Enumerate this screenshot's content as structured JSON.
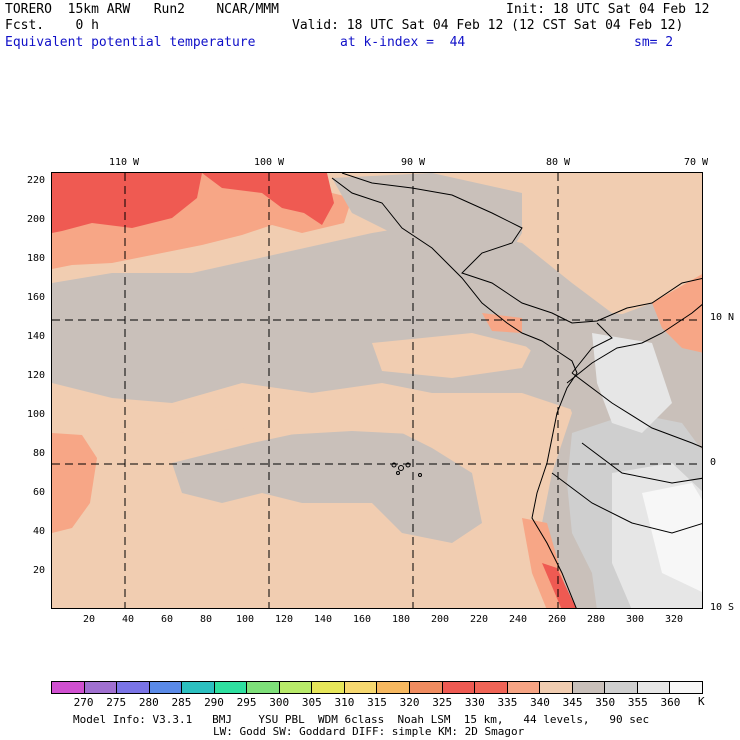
{
  "header": {
    "model": "TORERO  15km ARW   Run2    NCAR/MMM",
    "init": "Init: 18 UTC Sat 04 Feb 12",
    "fcst": "Fcst.    0 h",
    "valid": "Valid: 18 UTC Sat 04 Feb 12 (12 CST Sat 04 Feb 12)",
    "field": "Equivalent potential temperature",
    "level": "at k-index =  44",
    "smooth": "sm= 2"
  },
  "map": {
    "top_lon_labels": [
      "110 W",
      "100 W",
      "90 W",
      "80 W",
      "70 W"
    ],
    "right_lat_labels": [
      "10 N",
      "0",
      "10 S"
    ],
    "left_grid_labels": [
      "220",
      "200",
      "180",
      "160",
      "140",
      "120",
      "100",
      "80",
      "60",
      "40",
      "20"
    ],
    "bottom_grid_labels": [
      "20",
      "40",
      "60",
      "80",
      "100",
      "120",
      "140",
      "160",
      "180",
      "200",
      "220",
      "240",
      "260",
      "280",
      "300",
      "320"
    ],
    "colors": {
      "t340": "#f1cdb1",
      "t335": "#f7a686",
      "t330": "#f27a66",
      "t325": "#ef5a52",
      "t345": "#c9c0ba",
      "t350": "#cfcfcf",
      "t355": "#e6e6e6",
      "t360": "#f7f7f7",
      "coast": "#000000"
    }
  },
  "colorbar": {
    "colors": [
      "#d050d0",
      "#a070d0",
      "#7a74e6",
      "#5a8ae8",
      "#2cc0c0",
      "#2ee0a0",
      "#7ee07a",
      "#b8ea6a",
      "#e6e65a",
      "#f6d870",
      "#f6b860",
      "#f08c60",
      "#ee5a52",
      "#f06456",
      "#f6a484",
      "#f1cdb1",
      "#c9c0ba",
      "#cfcfcf",
      "#e6e6e6",
      "#f7f7f7"
    ],
    "labels": [
      "270",
      "275",
      "280",
      "285",
      "290",
      "295",
      "300",
      "305",
      "310",
      "315",
      "320",
      "325",
      "330",
      "335",
      "340",
      "345",
      "350",
      "355",
      "360"
    ],
    "unit": "K"
  },
  "footer": {
    "line1": "Model Info: V3.3.1   BMJ    YSU PBL  WDM 6class  Noah LSM  15 km,   44 levels,   90 sec",
    "line2": "LW: Godd SW: Goddard DIFF: simple KM: 2D Smagor"
  }
}
